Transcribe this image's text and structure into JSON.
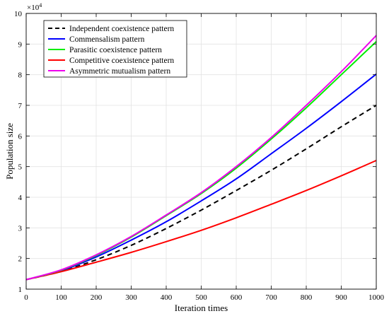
{
  "chart_data": {
    "type": "line",
    "xlabel": "Iteration times",
    "ylabel": "Population size",
    "y_exponent_label": "×10",
    "y_exponent_power": "4",
    "xlim": [
      0,
      1000
    ],
    "ylim": [
      1,
      10
    ],
    "x_ticks": [
      0,
      100,
      200,
      300,
      400,
      500,
      600,
      700,
      800,
      900,
      1000
    ],
    "y_ticks": [
      1,
      2,
      3,
      4,
      5,
      6,
      7,
      8,
      9,
      10
    ],
    "grid": true,
    "legend_position": "top-left",
    "x": [
      0,
      100,
      200,
      300,
      400,
      500,
      600,
      700,
      800,
      900,
      1000
    ],
    "series": [
      {
        "name": "Independent coexistence pattern",
        "color": "#000000",
        "dash": "dashed",
        "values": [
          1.31,
          1.58,
          1.96,
          2.43,
          2.98,
          3.58,
          4.22,
          4.88,
          5.58,
          6.3,
          7.0
        ]
      },
      {
        "name": "Commensalism  pattern",
        "color": "#0000ff",
        "dash": "solid",
        "values": [
          1.31,
          1.6,
          2.05,
          2.6,
          3.2,
          3.88,
          4.6,
          5.42,
          6.25,
          7.12,
          8.02
        ]
      },
      {
        "name": "Parasitic coexistence pattern",
        "color": "#00ee00",
        "dash": "solid",
        "values": [
          1.31,
          1.62,
          2.1,
          2.7,
          3.4,
          4.12,
          4.95,
          5.9,
          6.92,
          8.0,
          9.08
        ]
      },
      {
        "name": "Competitive coexistence pattern",
        "color": "#ff0000",
        "dash": "solid",
        "values": [
          1.31,
          1.57,
          1.88,
          2.2,
          2.55,
          2.92,
          3.33,
          3.77,
          4.22,
          4.7,
          5.2
        ]
      },
      {
        "name": "Asymmetric mutualism pattern",
        "color": "#ee00ee",
        "dash": "solid",
        "values": [
          1.31,
          1.63,
          2.12,
          2.72,
          3.42,
          4.15,
          5.0,
          5.95,
          7.0,
          8.1,
          9.28
        ]
      }
    ]
  }
}
